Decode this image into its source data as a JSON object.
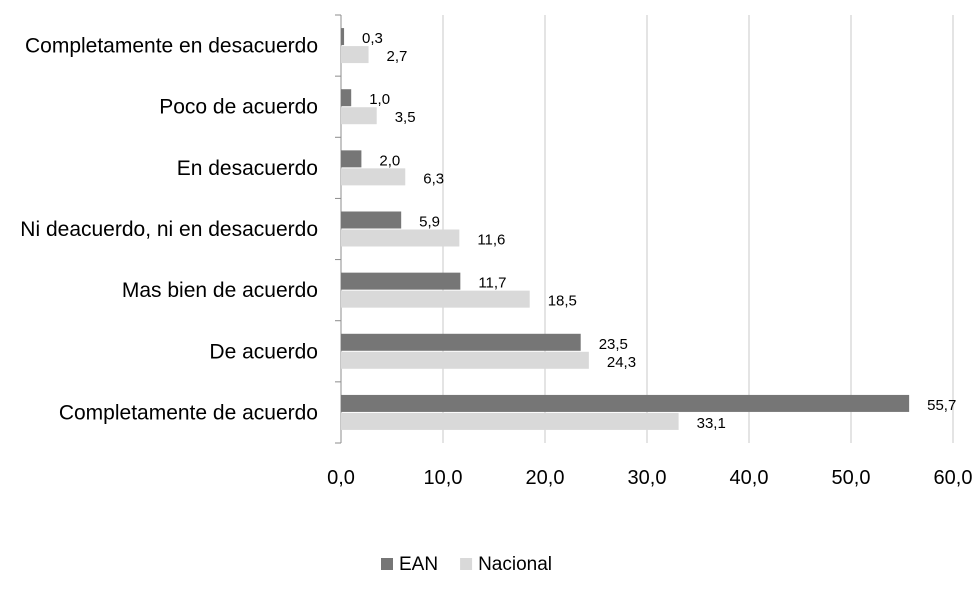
{
  "chart_data": {
    "type": "bar",
    "orientation": "horizontal",
    "categories": [
      "Completamente en desacuerdo",
      "Poco de acuerdo",
      "En desacuerdo",
      "Ni deacuerdo, ni en desacuerdo",
      "Mas bien de acuerdo",
      "De acuerdo",
      "Completamente de acuerdo"
    ],
    "series": [
      {
        "name": "EAN",
        "color": "#767676",
        "values": [
          0.3,
          1.0,
          2.0,
          5.9,
          11.7,
          23.5,
          55.7
        ],
        "labels": [
          "0,3",
          "1,0",
          "2,0",
          "5,9",
          "11,7",
          "23,5",
          "55,7"
        ]
      },
      {
        "name": "Nacional",
        "color": "#d9d9d9",
        "values": [
          2.7,
          3.5,
          6.3,
          11.6,
          18.5,
          24.3,
          33.1
        ],
        "labels": [
          "2,7",
          "3,5",
          "6,3",
          "11,6",
          "18,5",
          "24,3",
          "33,1"
        ]
      }
    ],
    "xticks": [
      "0,0",
      "10,0",
      "20,0",
      "30,0",
      "40,0",
      "50,0",
      "60,0"
    ],
    "xlim": [
      0,
      60
    ],
    "grid": true,
    "legend": "bottom-center",
    "title": "",
    "xlabel": "",
    "ylabel": ""
  }
}
